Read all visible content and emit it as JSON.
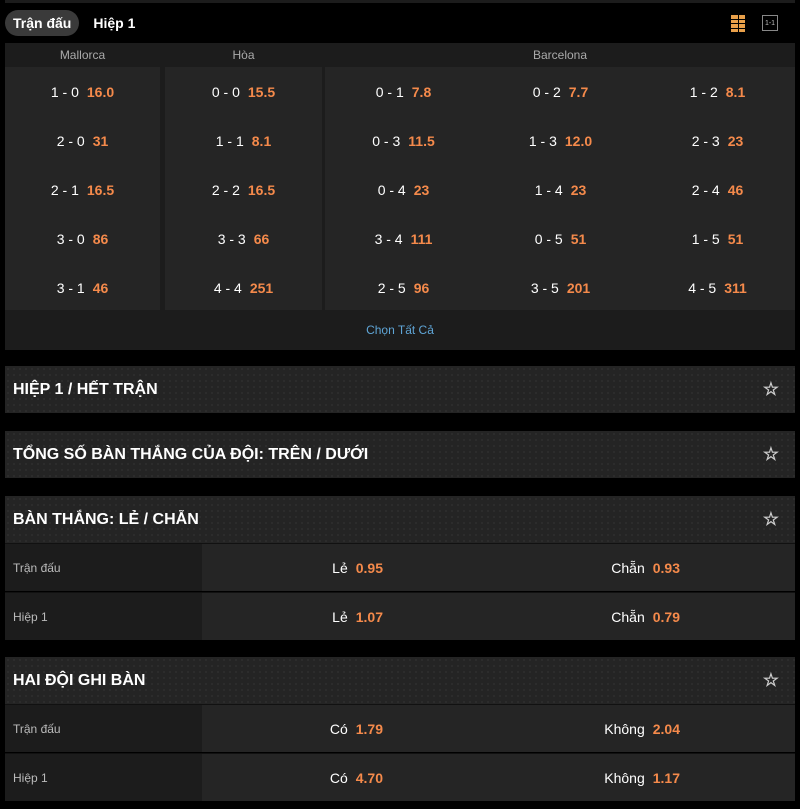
{
  "tabs": [
    {
      "label": "Trận đấu",
      "active": true
    },
    {
      "label": "Hiệp 1",
      "active": false
    }
  ],
  "icons": {
    "grid": "grid-view-icon",
    "single": "single-column-view-icon",
    "star": "star-icon"
  },
  "colors": {
    "odds": "#f58a4b",
    "link": "#5fa5d6",
    "grid_icon": "#e9a04a"
  },
  "correct_score": {
    "headers": [
      "Mallorca",
      "Hòa",
      "Barcelona"
    ],
    "mallorca": [
      {
        "s": "1 - 0",
        "o": "16.0"
      },
      {
        "s": "2 - 0",
        "o": "31"
      },
      {
        "s": "2 - 1",
        "o": "16.5"
      },
      {
        "s": "3 - 0",
        "o": "86"
      },
      {
        "s": "3 - 1",
        "o": "46"
      }
    ],
    "draw": [
      {
        "s": "0 - 0",
        "o": "15.5"
      },
      {
        "s": "1 - 1",
        "o": "8.1"
      },
      {
        "s": "2 - 2",
        "o": "16.5"
      },
      {
        "s": "3 - 3",
        "o": "66"
      },
      {
        "s": "4 - 4",
        "o": "251"
      }
    ],
    "barcelona": [
      [
        {
          "s": "0 - 1",
          "o": "7.8"
        },
        {
          "s": "0 - 3",
          "o": "11.5"
        },
        {
          "s": "0 - 4",
          "o": "23"
        },
        {
          "s": "3 - 4",
          "o": "111"
        },
        {
          "s": "2 - 5",
          "o": "96"
        }
      ],
      [
        {
          "s": "0 - 2",
          "o": "7.7"
        },
        {
          "s": "1 - 3",
          "o": "12.0"
        },
        {
          "s": "1 - 4",
          "o": "23"
        },
        {
          "s": "0 - 5",
          "o": "51"
        },
        {
          "s": "3 - 5",
          "o": "201"
        }
      ],
      [
        {
          "s": "1 - 2",
          "o": "8.1"
        },
        {
          "s": "2 - 3",
          "o": "23"
        },
        {
          "s": "2 - 4",
          "o": "46"
        },
        {
          "s": "1 - 5",
          "o": "51"
        },
        {
          "s": "4 - 5",
          "o": "311"
        }
      ]
    ],
    "select_all": "Chọn Tất Cả"
  },
  "sections": [
    {
      "title": "HIỆP 1 / HẾT TRẬN"
    },
    {
      "title": "TỔNG SỐ BÀN THẮNG CỦA ĐỘI: TRÊN / DƯỚI"
    },
    {
      "title": "BÀN THẮNG: LẺ / CHẴN",
      "rows": [
        {
          "label": "Trận đấu",
          "a": "Lẻ",
          "ao": "0.95",
          "b": "Chẵn",
          "bo": "0.93"
        },
        {
          "label": "Hiệp 1",
          "a": "Lẻ",
          "ao": "1.07",
          "b": "Chẵn",
          "bo": "0.79"
        }
      ]
    },
    {
      "title": "HAI ĐỘI GHI BÀN",
      "rows": [
        {
          "label": "Trận đấu",
          "a": "Có",
          "ao": "1.79",
          "b": "Không",
          "bo": "2.04"
        },
        {
          "label": "Hiệp 1",
          "a": "Có",
          "ao": "4.70",
          "b": "Không",
          "bo": "1.17"
        }
      ]
    }
  ]
}
